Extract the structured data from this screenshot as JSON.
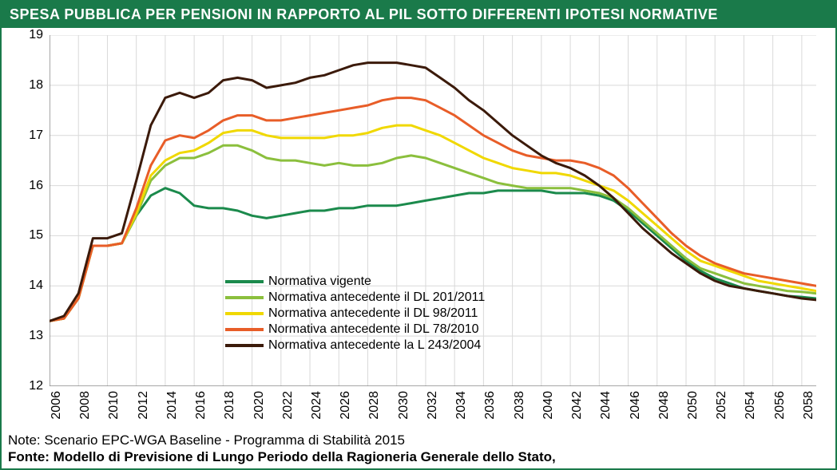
{
  "title": "SPESA PUBBLICA PER PENSIONI IN RAPPORTO AL PIL SOTTO DIFFERENTI IPOTESI NORMATIVE",
  "note_label": "Note: Scenario EPC-WGA Baseline - Programma di Stabilità 2015",
  "source_label": "Fonte: Modello di Previsione di Lungo Periodo della Ragioneria Generale dello Stato,",
  "chart": {
    "type": "line",
    "years": [
      2006,
      2007,
      2008,
      2009,
      2010,
      2011,
      2012,
      2013,
      2014,
      2015,
      2016,
      2017,
      2018,
      2019,
      2020,
      2021,
      2022,
      2023,
      2024,
      2025,
      2026,
      2027,
      2028,
      2029,
      2030,
      2031,
      2032,
      2033,
      2034,
      2035,
      2036,
      2037,
      2038,
      2039,
      2040,
      2041,
      2042,
      2043,
      2044,
      2045,
      2046,
      2047,
      2048,
      2049,
      2050,
      2051,
      2052,
      2053,
      2054,
      2055,
      2056,
      2057,
      2058,
      2059
    ],
    "x_tick_years": [
      2006,
      2008,
      2010,
      2012,
      2014,
      2016,
      2018,
      2020,
      2022,
      2024,
      2026,
      2028,
      2030,
      2032,
      2034,
      2036,
      2038,
      2040,
      2042,
      2044,
      2046,
      2048,
      2050,
      2052,
      2054,
      2056,
      2058
    ],
    "ylim": [
      12,
      19
    ],
    "ytick_step": 1,
    "line_width": 3,
    "grid_color": "#d9d9d9",
    "background_color": "#ffffff",
    "axis_color": "#888888",
    "label_fontsize": 16,
    "title_fontsize": 18,
    "title_bg": "#1a7a4a",
    "title_color": "#ffffff",
    "border_color": "#1a7a4a",
    "series": [
      {
        "name": "Normativa vigente",
        "color": "#1b8a4c",
        "values": [
          13.3,
          13.35,
          13.75,
          14.8,
          14.8,
          14.85,
          15.4,
          15.8,
          15.95,
          15.85,
          15.6,
          15.55,
          15.55,
          15.5,
          15.4,
          15.35,
          15.4,
          15.45,
          15.5,
          15.5,
          15.55,
          15.55,
          15.6,
          15.6,
          15.6,
          15.65,
          15.7,
          15.75,
          15.8,
          15.85,
          15.85,
          15.9,
          15.9,
          15.9,
          15.9,
          15.85,
          15.85,
          15.85,
          15.8,
          15.7,
          15.5,
          15.25,
          15.0,
          14.75,
          14.5,
          14.3,
          14.15,
          14.05,
          13.95,
          13.9,
          13.85,
          13.8,
          13.78,
          13.75
        ]
      },
      {
        "name": "Normativa antecedente il DL 201/2011",
        "color": "#8bbf3d",
        "values": [
          13.3,
          13.35,
          13.75,
          14.8,
          14.8,
          14.85,
          15.4,
          16.1,
          16.4,
          16.55,
          16.55,
          16.65,
          16.8,
          16.8,
          16.7,
          16.55,
          16.5,
          16.5,
          16.45,
          16.4,
          16.45,
          16.4,
          16.4,
          16.45,
          16.55,
          16.6,
          16.55,
          16.45,
          16.35,
          16.25,
          16.15,
          16.05,
          16.0,
          15.95,
          15.95,
          15.95,
          15.95,
          15.9,
          15.85,
          15.75,
          15.55,
          15.3,
          15.05,
          14.8,
          14.55,
          14.35,
          14.25,
          14.15,
          14.05,
          14.0,
          13.95,
          13.9,
          13.88,
          13.85
        ]
      },
      {
        "name": "Normativa antecedente il DL 98/2011",
        "color": "#f0d800",
        "values": [
          13.3,
          13.35,
          13.75,
          14.8,
          14.8,
          14.85,
          15.45,
          16.2,
          16.5,
          16.65,
          16.7,
          16.85,
          17.05,
          17.1,
          17.1,
          17.0,
          16.95,
          16.95,
          16.95,
          16.95,
          17.0,
          17.0,
          17.05,
          17.15,
          17.2,
          17.2,
          17.1,
          17.0,
          16.85,
          16.7,
          16.55,
          16.45,
          16.35,
          16.3,
          16.25,
          16.25,
          16.2,
          16.1,
          16.0,
          15.9,
          15.7,
          15.45,
          15.2,
          14.95,
          14.7,
          14.5,
          14.4,
          14.3,
          14.2,
          14.1,
          14.05,
          14.0,
          13.95,
          13.9
        ]
      },
      {
        "name": "Normativa antecedente il DL 78/2010",
        "color": "#e85d28",
        "values": [
          13.3,
          13.35,
          13.75,
          14.8,
          14.8,
          14.85,
          15.55,
          16.4,
          16.9,
          17.0,
          16.95,
          17.1,
          17.3,
          17.4,
          17.4,
          17.3,
          17.3,
          17.35,
          17.4,
          17.45,
          17.5,
          17.55,
          17.6,
          17.7,
          17.75,
          17.75,
          17.7,
          17.55,
          17.4,
          17.2,
          17.0,
          16.85,
          16.7,
          16.6,
          16.55,
          16.5,
          16.5,
          16.45,
          16.35,
          16.2,
          15.95,
          15.65,
          15.35,
          15.05,
          14.8,
          14.6,
          14.45,
          14.35,
          14.25,
          14.2,
          14.15,
          14.1,
          14.05,
          14.0
        ]
      },
      {
        "name": "Normativa antecedente la L 243/2004",
        "color": "#3b1a0a",
        "values": [
          13.3,
          13.4,
          13.85,
          14.95,
          14.95,
          15.05,
          16.1,
          17.2,
          17.75,
          17.85,
          17.75,
          17.85,
          18.1,
          18.15,
          18.1,
          17.95,
          18.0,
          18.05,
          18.15,
          18.2,
          18.3,
          18.4,
          18.45,
          18.45,
          18.45,
          18.4,
          18.35,
          18.15,
          17.95,
          17.7,
          17.5,
          17.25,
          17.0,
          16.8,
          16.6,
          16.45,
          16.35,
          16.2,
          16.0,
          15.75,
          15.45,
          15.15,
          14.9,
          14.65,
          14.45,
          14.25,
          14.1,
          14.0,
          13.95,
          13.9,
          13.85,
          13.8,
          13.75,
          13.72
        ]
      }
    ],
    "legend_position": "lower-center"
  }
}
